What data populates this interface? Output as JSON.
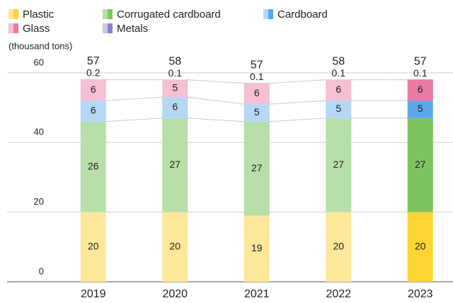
{
  "chart_data": {
    "type": "stacked_bar",
    "y_axis_label": "(thousand tons)",
    "categories": [
      "2019",
      "2020",
      "2021",
      "2022",
      "2023"
    ],
    "highlight": "2023",
    "series": [
      {
        "name": "Plastic",
        "color": "#fde89a",
        "highlight_color": "#fcd535",
        "values": [
          20,
          20,
          19,
          20,
          20
        ]
      },
      {
        "name": "Corrugated cardboard",
        "color": "#b8dfaa",
        "highlight_color": "#7dc461",
        "values": [
          26,
          27,
          27,
          27,
          27
        ]
      },
      {
        "name": "Cardboard",
        "color": "#b5d8f5",
        "highlight_color": "#5ba6e9",
        "values": [
          6,
          6,
          5,
          5,
          5
        ]
      },
      {
        "name": "Glass",
        "color": "#f5bfd4",
        "highlight_color": "#e97ba4",
        "values": [
          6,
          5,
          6,
          6,
          6
        ]
      },
      {
        "name": "Metals",
        "color": "#cbc8e4",
        "highlight_color": "#8b80d0",
        "values": [
          0.2,
          0.1,
          0.1,
          0.1,
          0.1
        ]
      }
    ],
    "totals": [
      57,
      58,
      57,
      58,
      57
    ],
    "ylim": [
      0,
      62
    ],
    "yticks": [
      0,
      20,
      40,
      60
    ],
    "grid": true
  }
}
